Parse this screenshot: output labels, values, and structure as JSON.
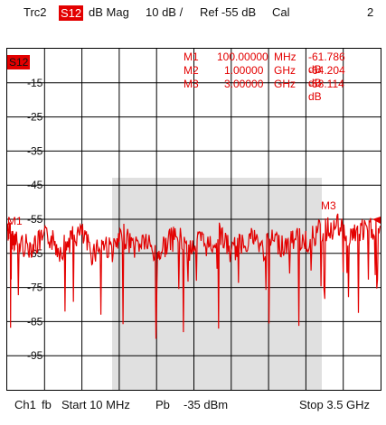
{
  "header": {
    "trace": "Trc2",
    "param_badge": "S12",
    "format": "dB Mag",
    "scale": "10 dB /",
    "ref": "Ref -55 dB",
    "cal": "Cal",
    "channel_num": "2"
  },
  "plot": {
    "trace_tag": "S12",
    "marker_table": [
      {
        "name": "M1",
        "freq": "100.00000",
        "unit": "MHz",
        "value": "-61.786 dB"
      },
      {
        "name": "M2",
        "freq": "1.00000",
        "unit": "GHz",
        "value": "-64.204 dB"
      },
      {
        "name": "M3",
        "freq": "3.00000",
        "unit": "GHz",
        "value": "-58.114 dB"
      }
    ],
    "y_ticks": [
      "-15",
      "-25",
      "-35",
      "-45",
      "-55",
      "-65",
      "-75",
      "-85",
      "-95"
    ],
    "marker_labels": {
      "m1": "M1",
      "m3": "M3"
    },
    "colors": {
      "trace": "#e30000",
      "grid": "#000000",
      "highlight": "#e0e0e0"
    }
  },
  "footer": {
    "channel": "Ch1",
    "fb": "fb",
    "start": "Start  10 MHz",
    "pb": "Pb",
    "power": "-35 dBm",
    "stop": "Stop  3.5 GHz"
  },
  "chart_data": {
    "type": "line",
    "xlabel": "",
    "ylabel": "",
    "x_start": "10 MHz",
    "x_stop": "3.5 GHz",
    "ylim": [
      -105,
      -5
    ],
    "series": [
      {
        "name": "S12",
        "x_ghz": [
          0.01,
          0.05,
          0.1,
          0.2,
          0.3,
          0.4,
          0.5,
          0.6,
          0.7,
          0.8,
          0.9,
          1.0,
          1.1,
          1.2,
          1.3,
          1.4,
          1.5,
          1.6,
          1.7,
          1.8,
          1.9,
          2.0,
          2.1,
          2.2,
          2.3,
          2.4,
          2.5,
          2.6,
          2.7,
          2.8,
          2.9,
          3.0,
          3.1,
          3.2,
          3.3,
          3.4,
          3.5
        ],
        "y_db": [
          -58,
          -60,
          -61.8,
          -63,
          -62,
          -60,
          -64,
          -61,
          -59,
          -65,
          -62,
          -64.2,
          -60,
          -63,
          -61,
          -66,
          -62,
          -60,
          -64,
          -61,
          -63,
          -59,
          -65,
          -62,
          -60,
          -64,
          -61,
          -63,
          -60,
          -62,
          -59,
          -58.1,
          -57,
          -60,
          -59,
          -58,
          -57
        ]
      }
    ]
  }
}
